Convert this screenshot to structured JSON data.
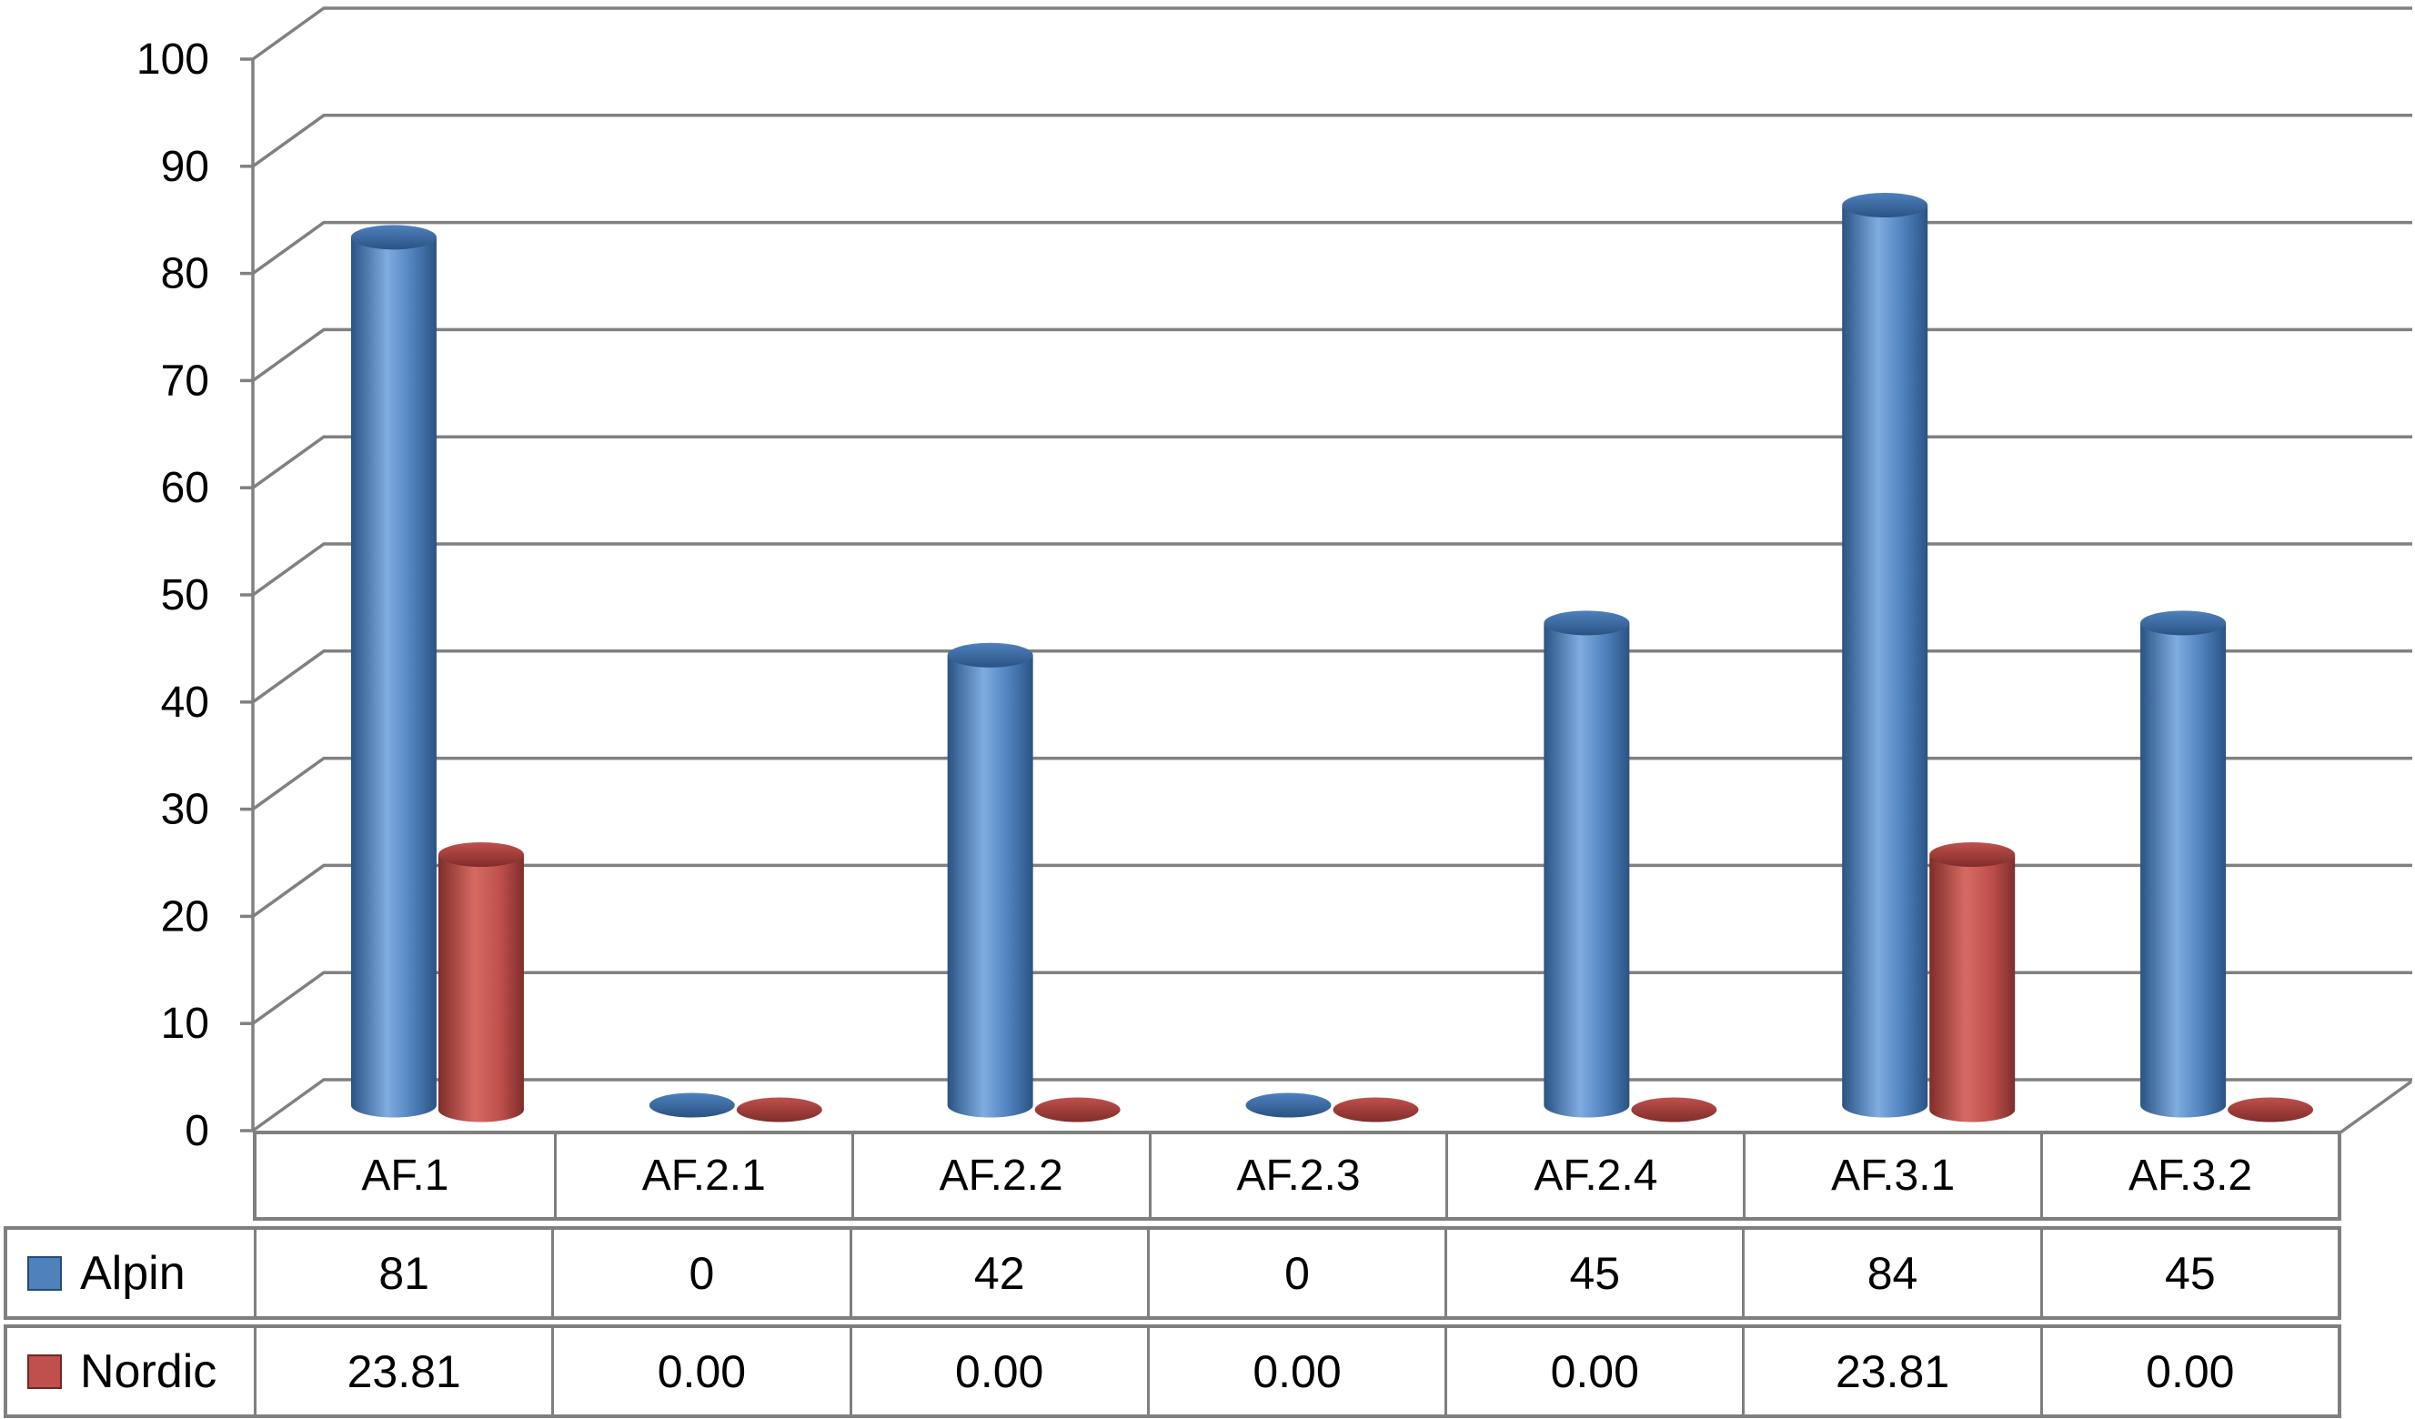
{
  "chart_data": {
    "type": "bar",
    "style": "3d-cylinder",
    "title": "",
    "xlabel": "",
    "ylabel": "",
    "ylim": [
      0,
      100
    ],
    "y_ticks": [
      0,
      10,
      20,
      30,
      40,
      50,
      60,
      70,
      80,
      90,
      100
    ],
    "grid": true,
    "legend_position": "table-left",
    "categories": [
      "AF.1",
      "AF.2.1",
      "AF.2.2",
      "AF.2.3",
      "AF.2.4",
      "AF.3.1",
      "AF.3.2"
    ],
    "series": [
      {
        "name": "Alpin",
        "color": "#4F81BD",
        "dark": "#2A5384",
        "light": "#7FACE0",
        "border": "#254A76",
        "values": [
          81,
          0,
          42,
          0,
          45,
          84,
          45
        ],
        "labels": [
          "81",
          "0",
          "42",
          "0",
          "45",
          "84",
          "45"
        ]
      },
      {
        "name": "Nordic",
        "color": "#C0504D",
        "dark": "#7F2D29",
        "light": "#D66A63",
        "border": "#6F2724",
        "values": [
          23.81,
          0,
          0,
          0,
          0,
          23.81,
          0
        ],
        "labels": [
          "23.81",
          "0.00",
          "0.00",
          "0.00",
          "0.00",
          "23.81",
          "0.00"
        ]
      }
    ]
  },
  "colors": {
    "grid": "#808080",
    "table_border": "#7F7F7F",
    "text": "#000000",
    "background": "#FFFFFF"
  }
}
